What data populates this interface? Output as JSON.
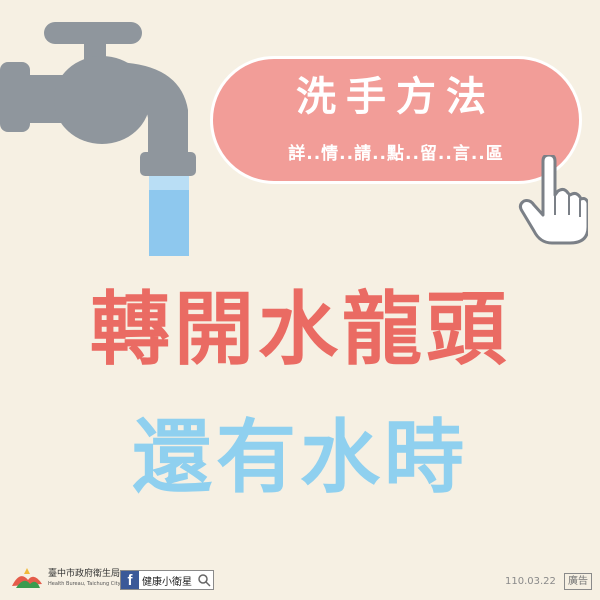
{
  "card": {
    "title": "洗手方法",
    "subtitle": "詳..情..請..點..留..言..區"
  },
  "headline": {
    "line1": "轉開水龍頭",
    "line2": "還有水時"
  },
  "footer": {
    "org_name": "臺中市政府衛生局",
    "org_name_en": "Health Bureau, Taichung City Government",
    "fb_page_name": "健康小衛星",
    "date": "110.03.22",
    "ad_label": "廣告"
  },
  "icons": {
    "faucet": "faucet-icon",
    "pointer": "pointing-hand-icon",
    "facebook": "facebook-icon",
    "search": "search-icon",
    "logo": "taichung-health-logo"
  },
  "colors": {
    "background": "#f6f0e3",
    "pill": "#f29d98",
    "headline1": "#ea6b63",
    "headline2": "#8fd0ef",
    "water": "#8ec8ee",
    "faucet": "#8f969d"
  }
}
